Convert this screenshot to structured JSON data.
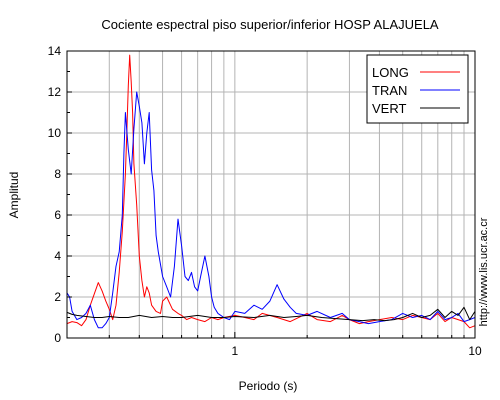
{
  "chart_data": {
    "type": "line",
    "title": "Cociente espectral piso superior/inferior  HOSP ALAJUELA",
    "xlabel": "Periodo (s)",
    "ylabel": "Amplitud",
    "xscale": "log",
    "xlim": [
      0.2,
      10
    ],
    "ylim": [
      0,
      14
    ],
    "x_ticks": [
      1,
      10
    ],
    "x_tick_labels": [
      "1",
      "10"
    ],
    "y_ticks": [
      0,
      2,
      4,
      6,
      8,
      10,
      12,
      14
    ],
    "y_tick_labels": [
      "0",
      "2",
      "4",
      "6",
      "8",
      "10",
      "12",
      "14"
    ],
    "grid": true,
    "legend_position": "top-right",
    "side_note": "http://www.lis.ucr.ac.cr",
    "series": [
      {
        "name": "LONG",
        "color": "#ff0000",
        "x": [
          0.2,
          0.21,
          0.22,
          0.23,
          0.24,
          0.25,
          0.27,
          0.28,
          0.29,
          0.3,
          0.31,
          0.32,
          0.33,
          0.34,
          0.35,
          0.355,
          0.36,
          0.365,
          0.37,
          0.375,
          0.38,
          0.39,
          0.4,
          0.41,
          0.42,
          0.43,
          0.44,
          0.45,
          0.47,
          0.49,
          0.5,
          0.52,
          0.55,
          0.58,
          0.6,
          0.63,
          0.66,
          0.7,
          0.75,
          0.8,
          0.85,
          0.9,
          1.0,
          1.1,
          1.2,
          1.3,
          1.5,
          1.7,
          2.0,
          2.2,
          2.5,
          2.8,
          3.0,
          3.3,
          3.6,
          4.0,
          4.5,
          5.0,
          5.5,
          6.0,
          6.5,
          7.0,
          7.5,
          8.0,
          8.5,
          9.0,
          9.5,
          10.0
        ],
        "values": [
          0.7,
          0.8,
          0.75,
          0.6,
          0.9,
          1.6,
          2.7,
          2.3,
          1.8,
          1.4,
          0.9,
          1.6,
          3.2,
          5.2,
          8.0,
          10.0,
          12.3,
          13.8,
          12.5,
          11.0,
          8.5,
          6.5,
          4.0,
          2.8,
          2.0,
          2.5,
          2.2,
          1.6,
          1.3,
          1.2,
          1.8,
          2.0,
          1.4,
          1.2,
          1.1,
          0.9,
          1.0,
          0.9,
          0.8,
          1.0,
          0.9,
          1.0,
          1.1,
          1.0,
          0.9,
          1.2,
          1.0,
          0.8,
          1.2,
          0.9,
          0.8,
          1.1,
          0.9,
          0.7,
          0.8,
          0.9,
          1.0,
          0.9,
          1.1,
          1.0,
          0.9,
          1.2,
          0.8,
          1.0,
          0.9,
          0.8,
          0.5,
          0.6
        ]
      },
      {
        "name": "TRAN",
        "color": "#0000ff",
        "x": [
          0.2,
          0.205,
          0.21,
          0.22,
          0.23,
          0.24,
          0.25,
          0.26,
          0.27,
          0.28,
          0.29,
          0.3,
          0.31,
          0.32,
          0.33,
          0.34,
          0.345,
          0.35,
          0.36,
          0.37,
          0.38,
          0.39,
          0.4,
          0.41,
          0.42,
          0.43,
          0.44,
          0.45,
          0.46,
          0.47,
          0.48,
          0.5,
          0.52,
          0.54,
          0.56,
          0.58,
          0.6,
          0.62,
          0.64,
          0.66,
          0.68,
          0.7,
          0.72,
          0.75,
          0.78,
          0.8,
          0.82,
          0.85,
          0.9,
          0.95,
          1.0,
          1.1,
          1.2,
          1.3,
          1.4,
          1.5,
          1.6,
          1.7,
          1.8,
          2.0,
          2.2,
          2.5,
          2.8,
          3.0,
          3.3,
          3.6,
          4.0,
          4.5,
          5.0,
          5.5,
          6.0,
          6.5,
          7.0,
          7.5,
          8.0,
          8.5,
          9.0,
          9.5,
          10.0
        ],
        "values": [
          2.2,
          2.0,
          1.3,
          0.9,
          1.0,
          1.2,
          1.6,
          0.9,
          0.5,
          0.5,
          0.7,
          1.0,
          2.2,
          3.5,
          4.2,
          6.0,
          9.0,
          11.0,
          9.2,
          8.0,
          10.2,
          12.0,
          11.3,
          10.5,
          8.5,
          10.0,
          11.0,
          8.2,
          7.2,
          5.0,
          4.2,
          3.0,
          2.5,
          2.0,
          3.5,
          5.8,
          4.5,
          3.0,
          2.8,
          3.2,
          2.5,
          2.3,
          3.0,
          4.0,
          3.0,
          2.0,
          1.5,
          1.2,
          1.0,
          0.9,
          1.3,
          1.2,
          1.6,
          1.4,
          1.8,
          2.6,
          1.9,
          1.5,
          1.2,
          1.1,
          1.3,
          1.0,
          1.2,
          0.9,
          0.8,
          0.7,
          0.8,
          0.9,
          1.2,
          1.0,
          1.1,
          0.9,
          1.3,
          0.9,
          1.0,
          1.2,
          0.8,
          0.9,
          1.0
        ]
      },
      {
        "name": "VERT",
        "color": "#000000",
        "x": [
          0.2,
          0.21,
          0.22,
          0.24,
          0.26,
          0.28,
          0.3,
          0.33,
          0.36,
          0.4,
          0.45,
          0.5,
          0.55,
          0.6,
          0.7,
          0.8,
          0.9,
          1.0,
          1.2,
          1.4,
          1.6,
          1.8,
          2.0,
          2.3,
          2.6,
          3.0,
          3.4,
          3.8,
          4.2,
          4.6,
          5.0,
          5.5,
          6.0,
          6.5,
          7.0,
          7.5,
          8.0,
          8.5,
          9.0,
          9.5,
          10.0
        ],
        "values": [
          1.25,
          1.15,
          1.1,
          1.05,
          1.0,
          1.0,
          1.05,
          1.0,
          1.0,
          1.1,
          1.0,
          1.05,
          1.0,
          1.0,
          1.1,
          1.0,
          1.0,
          1.05,
          1.0,
          1.1,
          1.0,
          1.05,
          1.1,
          1.0,
          0.95,
          0.9,
          0.85,
          0.9,
          0.85,
          0.9,
          1.0,
          1.2,
          1.0,
          1.1,
          1.4,
          1.0,
          1.3,
          1.1,
          1.5,
          0.9,
          1.3
        ]
      }
    ]
  }
}
